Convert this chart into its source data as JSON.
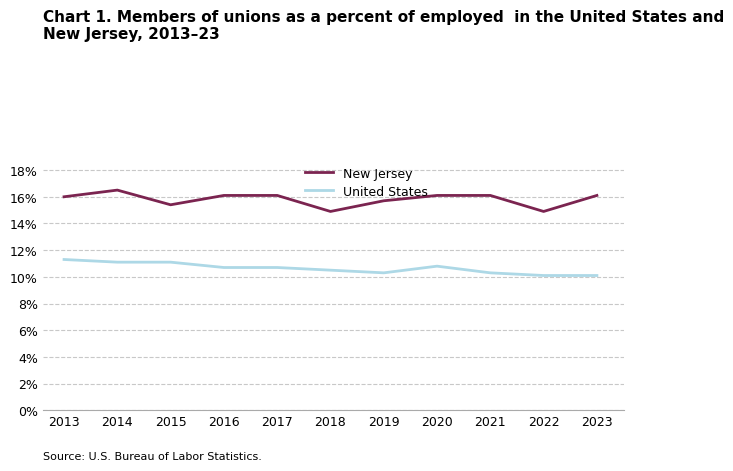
{
  "title_line1": "Chart 1. Members of unions as a percent of employed  in the United States and",
  "title_line2": "New Jersey, 2013–23",
  "years": [
    2013,
    2014,
    2015,
    2016,
    2017,
    2018,
    2019,
    2020,
    2021,
    2022,
    2023
  ],
  "new_jersey": [
    16.0,
    16.5,
    15.4,
    16.1,
    16.1,
    14.9,
    15.7,
    16.1,
    16.1,
    14.9,
    16.1
  ],
  "united_states": [
    11.3,
    11.1,
    11.1,
    10.7,
    10.7,
    10.5,
    10.3,
    10.8,
    10.3,
    10.1,
    10.1
  ],
  "nj_color": "#7B2450",
  "us_color": "#ADD8E6",
  "ylim": [
    0,
    19
  ],
  "yticks": [
    0,
    2,
    4,
    6,
    8,
    10,
    12,
    14,
    16,
    18
  ],
  "source": "Source: U.S. Bureau of Labor Statistics.",
  "background_color": "#ffffff",
  "grid_color": "#c8c8c8",
  "legend_labels": [
    "New Jersey",
    "United States"
  ],
  "line_width": 2.0,
  "title_fontsize": 11,
  "tick_fontsize": 9,
  "source_fontsize": 8
}
